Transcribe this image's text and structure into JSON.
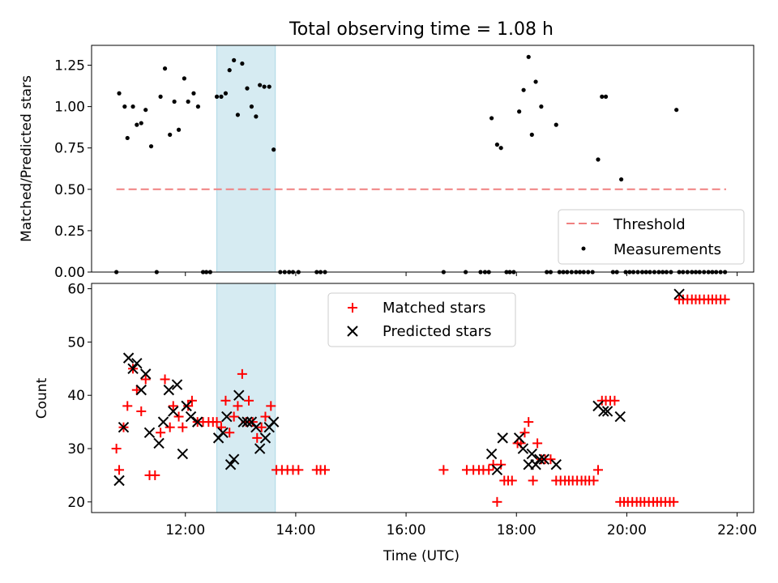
{
  "chart_data": [
    {
      "type": "scatter",
      "title": "Total observing time = 1.08 h",
      "xlabel": "",
      "ylabel": "Matched/Predicted stars",
      "xlim": [
        10.3,
        22.3
      ],
      "ylim": [
        0.0,
        1.37
      ],
      "yticks": [
        0.0,
        0.25,
        0.5,
        0.75,
        1.0,
        1.25
      ],
      "ytick_labels": [
        "0.00",
        "0.25",
        "0.50",
        "0.75",
        "1.00",
        "1.25"
      ],
      "legend_position": "lower-right",
      "shaded_band": [
        12.57,
        13.63
      ],
      "threshold": {
        "name": "Threshold",
        "y": 0.5,
        "x_from": 10.75,
        "x_to": 21.8,
        "color": "#f08080"
      },
      "series": [
        {
          "name": "Measurements",
          "color": "#000000",
          "points": [
            [
              10.75,
              0.0
            ],
            [
              10.8,
              1.08
            ],
            [
              10.9,
              1.0
            ],
            [
              10.95,
              0.81
            ],
            [
              11.05,
              1.0
            ],
            [
              11.12,
              0.89
            ],
            [
              11.2,
              0.9
            ],
            [
              11.28,
              0.98
            ],
            [
              11.38,
              0.76
            ],
            [
              11.48,
              0.0
            ],
            [
              11.55,
              1.06
            ],
            [
              11.63,
              1.23
            ],
            [
              11.72,
              0.83
            ],
            [
              11.8,
              1.03
            ],
            [
              11.88,
              0.86
            ],
            [
              11.98,
              1.17
            ],
            [
              12.05,
              1.03
            ],
            [
              12.15,
              1.08
            ],
            [
              12.23,
              1.0
            ],
            [
              12.32,
              0.0
            ],
            [
              12.38,
              0.0
            ],
            [
              12.45,
              0.0
            ],
            [
              12.57,
              1.06
            ],
            [
              12.65,
              1.06
            ],
            [
              12.73,
              1.08
            ],
            [
              12.8,
              1.22
            ],
            [
              12.88,
              1.28
            ],
            [
              12.95,
              0.95
            ],
            [
              13.03,
              1.26
            ],
            [
              13.12,
              1.11
            ],
            [
              13.2,
              1.0
            ],
            [
              13.28,
              0.94
            ],
            [
              13.35,
              1.13
            ],
            [
              13.43,
              1.12
            ],
            [
              13.52,
              1.12
            ],
            [
              13.6,
              0.74
            ],
            [
              13.72,
              0.0
            ],
            [
              13.8,
              0.0
            ],
            [
              13.88,
              0.0
            ],
            [
              13.95,
              0.0
            ],
            [
              14.05,
              0.0
            ],
            [
              14.38,
              0.0
            ],
            [
              14.45,
              0.0
            ],
            [
              14.53,
              0.0
            ],
            [
              16.68,
              0.0
            ],
            [
              17.08,
              0.0
            ],
            [
              17.35,
              0.0
            ],
            [
              17.43,
              0.0
            ],
            [
              17.5,
              0.0
            ],
            [
              17.55,
              0.93
            ],
            [
              17.65,
              0.77
            ],
            [
              17.72,
              0.75
            ],
            [
              17.82,
              0.0
            ],
            [
              17.88,
              0.0
            ],
            [
              17.95,
              0.0
            ],
            [
              18.05,
              0.97
            ],
            [
              18.13,
              1.1
            ],
            [
              18.22,
              1.3
            ],
            [
              18.28,
              0.83
            ],
            [
              18.35,
              1.15
            ],
            [
              18.45,
              1.0
            ],
            [
              18.55,
              0.0
            ],
            [
              18.62,
              0.0
            ],
            [
              18.72,
              0.89
            ],
            [
              18.78,
              0.0
            ],
            [
              18.85,
              0.0
            ],
            [
              18.92,
              0.0
            ],
            [
              19.0,
              0.0
            ],
            [
              19.08,
              0.0
            ],
            [
              19.15,
              0.0
            ],
            [
              19.22,
              0.0
            ],
            [
              19.3,
              0.0
            ],
            [
              19.38,
              0.0
            ],
            [
              19.48,
              0.68
            ],
            [
              19.55,
              1.06
            ],
            [
              19.62,
              1.06
            ],
            [
              19.75,
              0.0
            ],
            [
              19.82,
              0.0
            ],
            [
              19.9,
              0.56
            ],
            [
              19.98,
              0.0
            ],
            [
              20.05,
              0.0
            ],
            [
              20.12,
              0.0
            ],
            [
              20.2,
              0.0
            ],
            [
              20.28,
              0.0
            ],
            [
              20.35,
              0.0
            ],
            [
              20.42,
              0.0
            ],
            [
              20.5,
              0.0
            ],
            [
              20.58,
              0.0
            ],
            [
              20.65,
              0.0
            ],
            [
              20.72,
              0.0
            ],
            [
              20.8,
              0.0
            ],
            [
              20.9,
              0.98
            ],
            [
              20.95,
              0.0
            ],
            [
              21.02,
              0.0
            ],
            [
              21.1,
              0.0
            ],
            [
              21.18,
              0.0
            ],
            [
              21.25,
              0.0
            ],
            [
              21.32,
              0.0
            ],
            [
              21.4,
              0.0
            ],
            [
              21.48,
              0.0
            ],
            [
              21.55,
              0.0
            ],
            [
              21.62,
              0.0
            ],
            [
              21.7,
              0.0
            ],
            [
              21.78,
              0.0
            ]
          ]
        }
      ]
    },
    {
      "type": "scatter",
      "title": "",
      "xlabel": "Time (UTC)",
      "ylabel": "Count",
      "xlim": [
        10.3,
        22.3
      ],
      "ylim": [
        18.0,
        61.0
      ],
      "xticks": [
        12,
        14,
        16,
        18,
        20,
        22
      ],
      "xtick_labels": [
        "12:00",
        "14:00",
        "16:00",
        "18:00",
        "20:00",
        "22:00"
      ],
      "yticks": [
        20,
        30,
        40,
        50,
        60
      ],
      "ytick_labels": [
        "20",
        "30",
        "40",
        "50",
        "60"
      ],
      "legend_position": "upper-center",
      "shaded_band": [
        12.57,
        13.63
      ],
      "series": [
        {
          "name": "Matched stars",
          "color": "#ff0000",
          "marker": "plus",
          "points": [
            [
              10.75,
              30
            ],
            [
              10.8,
              26
            ],
            [
              10.88,
              34
            ],
            [
              10.95,
              38
            ],
            [
              11.05,
              45
            ],
            [
              11.12,
              41
            ],
            [
              11.2,
              37
            ],
            [
              11.28,
              43
            ],
            [
              11.35,
              25
            ],
            [
              11.45,
              25
            ],
            [
              11.55,
              33
            ],
            [
              11.63,
              43
            ],
            [
              11.72,
              34
            ],
            [
              11.78,
              38
            ],
            [
              11.88,
              36
            ],
            [
              11.95,
              34
            ],
            [
              12.05,
              38
            ],
            [
              12.12,
              39
            ],
            [
              12.22,
              35
            ],
            [
              12.32,
              35
            ],
            [
              12.42,
              35
            ],
            [
              12.5,
              35
            ],
            [
              12.57,
              35
            ],
            [
              12.65,
              34
            ],
            [
              12.73,
              39
            ],
            [
              12.8,
              33
            ],
            [
              12.88,
              36
            ],
            [
              12.95,
              38
            ],
            [
              13.03,
              44
            ],
            [
              13.1,
              35
            ],
            [
              13.15,
              39
            ],
            [
              13.22,
              35
            ],
            [
              13.3,
              32
            ],
            [
              13.38,
              34
            ],
            [
              13.45,
              36
            ],
            [
              13.55,
              38
            ],
            [
              13.65,
              26
            ],
            [
              13.75,
              26
            ],
            [
              13.85,
              26
            ],
            [
              13.95,
              26
            ],
            [
              14.05,
              26
            ],
            [
              14.38,
              26
            ],
            [
              14.45,
              26
            ],
            [
              14.53,
              26
            ],
            [
              16.68,
              26
            ],
            [
              17.1,
              26
            ],
            [
              17.22,
              26
            ],
            [
              17.32,
              26
            ],
            [
              17.4,
              26
            ],
            [
              17.5,
              26
            ],
            [
              17.58,
              27
            ],
            [
              17.65,
              20
            ],
            [
              17.72,
              27
            ],
            [
              17.78,
              24
            ],
            [
              17.85,
              24
            ],
            [
              17.92,
              24
            ],
            [
              18.02,
              31
            ],
            [
              18.08,
              31
            ],
            [
              18.15,
              33
            ],
            [
              18.22,
              35
            ],
            [
              18.3,
              24
            ],
            [
              18.38,
              31
            ],
            [
              18.45,
              28
            ],
            [
              18.52,
              28
            ],
            [
              18.62,
              28
            ],
            [
              18.72,
              24
            ],
            [
              18.8,
              24
            ],
            [
              18.88,
              24
            ],
            [
              18.95,
              24
            ],
            [
              19.02,
              24
            ],
            [
              19.1,
              24
            ],
            [
              19.18,
              24
            ],
            [
              19.25,
              24
            ],
            [
              19.32,
              24
            ],
            [
              19.4,
              24
            ],
            [
              19.48,
              26
            ],
            [
              19.55,
              39
            ],
            [
              19.62,
              39
            ],
            [
              19.7,
              39
            ],
            [
              19.78,
              39
            ],
            [
              19.88,
              20
            ],
            [
              19.95,
              20
            ],
            [
              20.02,
              20
            ],
            [
              20.1,
              20
            ],
            [
              20.18,
              20
            ],
            [
              20.25,
              20
            ],
            [
              20.32,
              20
            ],
            [
              20.4,
              20
            ],
            [
              20.48,
              20
            ],
            [
              20.55,
              20
            ],
            [
              20.62,
              20
            ],
            [
              20.7,
              20
            ],
            [
              20.78,
              20
            ],
            [
              20.85,
              20
            ],
            [
              20.95,
              58
            ],
            [
              21.02,
              58
            ],
            [
              21.1,
              58
            ],
            [
              21.18,
              58
            ],
            [
              21.25,
              58
            ],
            [
              21.32,
              58
            ],
            [
              21.4,
              58
            ],
            [
              21.48,
              58
            ],
            [
              21.55,
              58
            ],
            [
              21.62,
              58
            ],
            [
              21.7,
              58
            ],
            [
              21.78,
              58
            ]
          ]
        },
        {
          "name": "Predicted stars",
          "color": "#000000",
          "marker": "x",
          "points": [
            [
              10.8,
              24
            ],
            [
              10.88,
              34
            ],
            [
              10.97,
              47
            ],
            [
              11.05,
              45
            ],
            [
              11.12,
              46
            ],
            [
              11.2,
              41
            ],
            [
              11.28,
              44
            ],
            [
              11.35,
              33
            ],
            [
              11.52,
              31
            ],
            [
              11.6,
              35
            ],
            [
              11.7,
              41
            ],
            [
              11.78,
              37
            ],
            [
              11.85,
              42
            ],
            [
              11.95,
              29
            ],
            [
              12.02,
              38
            ],
            [
              12.1,
              36
            ],
            [
              12.22,
              35
            ],
            [
              12.6,
              32
            ],
            [
              12.68,
              33
            ],
            [
              12.75,
              36
            ],
            [
              12.82,
              27
            ],
            [
              12.88,
              28
            ],
            [
              12.97,
              40
            ],
            [
              13.05,
              35
            ],
            [
              13.12,
              35
            ],
            [
              13.2,
              35
            ],
            [
              13.28,
              34
            ],
            [
              13.35,
              30
            ],
            [
              13.45,
              32
            ],
            [
              13.52,
              34
            ],
            [
              13.6,
              35
            ],
            [
              17.55,
              29
            ],
            [
              17.65,
              26
            ],
            [
              17.75,
              32
            ],
            [
              18.05,
              32
            ],
            [
              18.12,
              30
            ],
            [
              18.22,
              27
            ],
            [
              18.28,
              29
            ],
            [
              18.35,
              27
            ],
            [
              18.42,
              28
            ],
            [
              18.5,
              28
            ],
            [
              18.72,
              27
            ],
            [
              19.48,
              38
            ],
            [
              19.58,
              37
            ],
            [
              19.65,
              37
            ],
            [
              19.88,
              36
            ],
            [
              20.95,
              59
            ]
          ]
        }
      ]
    }
  ]
}
